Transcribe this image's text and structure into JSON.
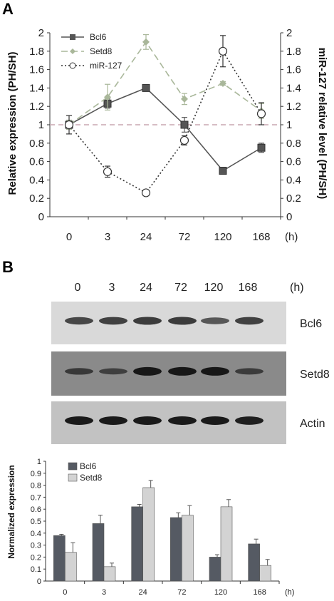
{
  "panel_a": {
    "letter": "A",
    "chart_data": {
      "type": "line",
      "categories": [
        "0",
        "3",
        "24",
        "72",
        "120",
        "168"
      ],
      "x_unit": "(h)",
      "ylabel_left": "Relative expression (PH/SH)",
      "ylabel_right": "miR-127 relative level (PH/SH)",
      "ylim": [
        0,
        2
      ],
      "yticks": [
        "0",
        "0.2",
        "0.4",
        "0.6",
        "0.8",
        "1",
        "1.2",
        "1.4",
        "1.6",
        "1.8",
        "2"
      ],
      "reference_line": 1,
      "series": [
        {
          "name": "Bcl6",
          "values": [
            1.0,
            1.23,
            1.4,
            1.0,
            0.5,
            0.75
          ],
          "errors": [
            0.05,
            0.05,
            0.02,
            0.08,
            0.02,
            0.05
          ],
          "color": "#555555",
          "style": "solid",
          "marker": "square"
        },
        {
          "name": "Setd8",
          "values": [
            1.0,
            1.3,
            1.9,
            1.28,
            1.45,
            1.15
          ],
          "errors": [
            0.05,
            0.14,
            0.08,
            0.06,
            0.02,
            0.08
          ],
          "color": "#a9b79a",
          "style": "dashed",
          "marker": "diamond"
        },
        {
          "name": "miR-127",
          "values": [
            1.0,
            0.49,
            0.26,
            0.83,
            1.8,
            1.12
          ],
          "errors": [
            0.1,
            0.06,
            0.02,
            0.05,
            0.17,
            0.12
          ],
          "color": "#333333",
          "style": "dotted",
          "marker": "circle"
        }
      ]
    }
  },
  "panel_b": {
    "letter": "B",
    "blot_timepoints": [
      "0",
      "3",
      "24",
      "72",
      "120",
      "168"
    ],
    "blot_unit": "(h)",
    "blot_rows": [
      {
        "label": "Bcl6",
        "bg": "#d9d9d9",
        "band": "#222222",
        "intensity": [
          0.75,
          0.8,
          0.85,
          0.85,
          0.6,
          0.8
        ]
      },
      {
        "label": "Setd8",
        "bg": "#8a8a8a",
        "band": "#111111",
        "intensity": [
          0.55,
          0.45,
          1.0,
          1.0,
          1.0,
          0.5
        ]
      },
      {
        "label": "Actin",
        "bg": "#c2c2c2",
        "band": "#111111",
        "intensity": [
          1.0,
          1.0,
          1.0,
          1.0,
          1.0,
          0.95
        ]
      }
    ],
    "chart_data": {
      "type": "bar",
      "categories": [
        "0",
        "3",
        "24",
        "72",
        "120",
        "168"
      ],
      "x_unit": "(h)",
      "ylabel": "Normalized expression",
      "ylim": [
        0,
        1
      ],
      "yticks": [
        "0",
        "0.1",
        "0.2",
        "0.3",
        "0.4",
        "0.5",
        "0.6",
        "0.7",
        "0.8",
        "0.9",
        "1"
      ],
      "series": [
        {
          "name": "Bcl6",
          "values": [
            0.38,
            0.48,
            0.62,
            0.53,
            0.2,
            0.31
          ],
          "errors": [
            0.01,
            0.07,
            0.02,
            0.04,
            0.02,
            0.04
          ],
          "color": "#555a63"
        },
        {
          "name": "Setd8",
          "values": [
            0.24,
            0.12,
            0.78,
            0.55,
            0.62,
            0.13
          ],
          "errors": [
            0.08,
            0.03,
            0.06,
            0.08,
            0.06,
            0.05
          ],
          "color": "#d3d3d3"
        }
      ]
    }
  }
}
